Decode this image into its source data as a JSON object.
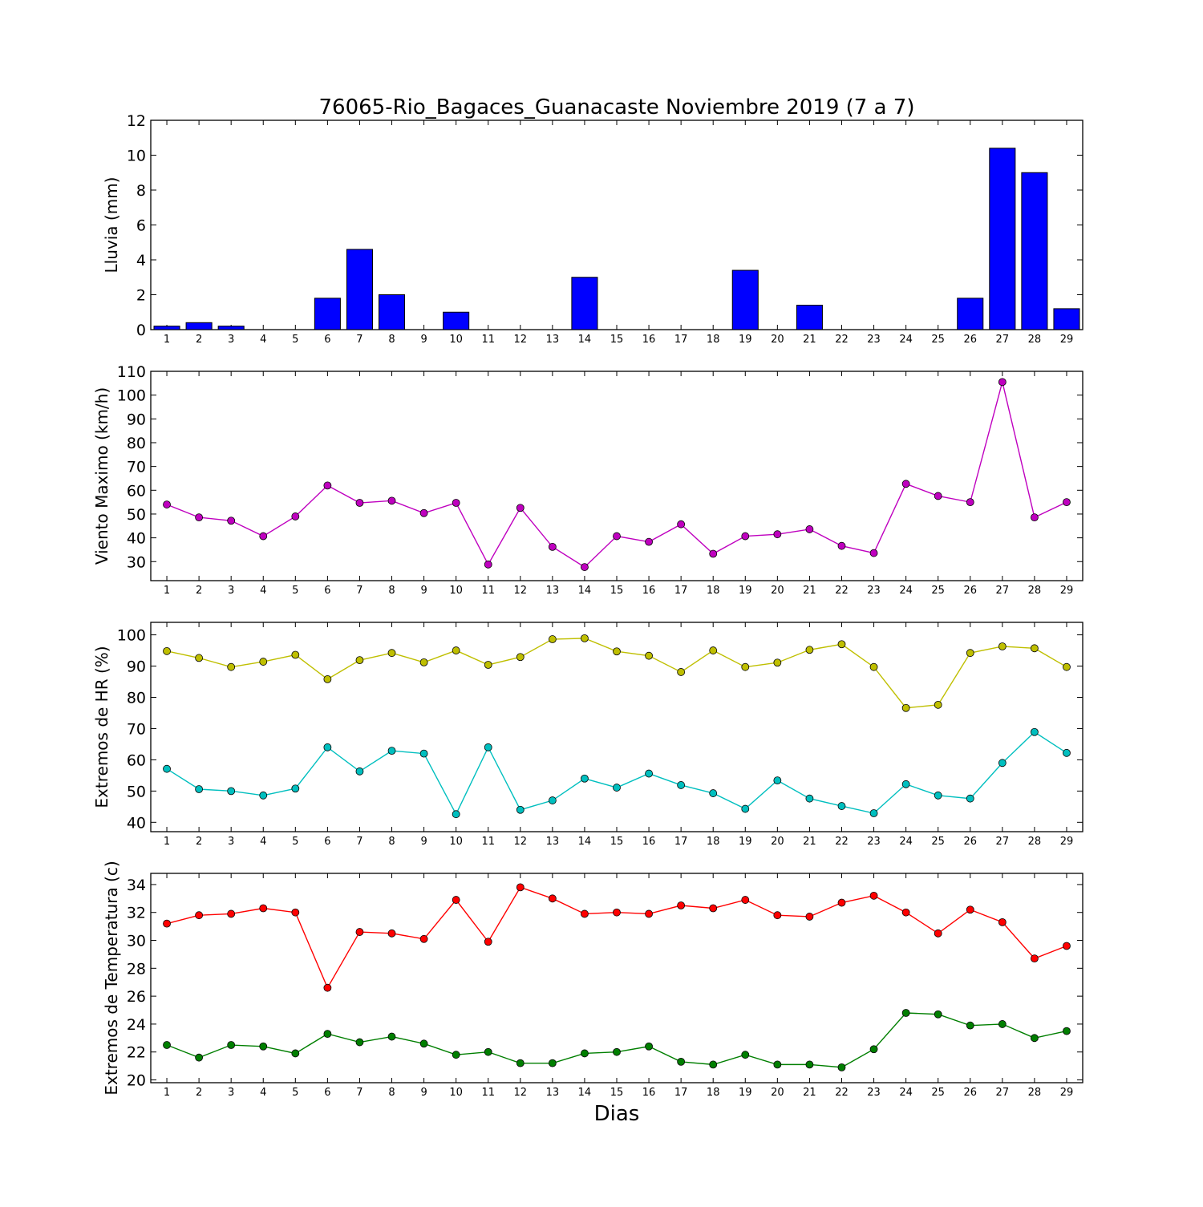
{
  "title": "76065-Rio_Bagaces_Guanacaste Noviembre 2019  (7 a 7)",
  "xlabel": "Dias",
  "chart_data": [
    {
      "type": "bar",
      "ylabel": "Lluvia (mm)",
      "ylim": [
        0,
        12
      ],
      "yticks": [
        0,
        2,
        4,
        6,
        8,
        10,
        12
      ],
      "x": [
        1,
        2,
        3,
        4,
        5,
        6,
        7,
        8,
        9,
        10,
        11,
        12,
        13,
        14,
        15,
        16,
        17,
        18,
        19,
        20,
        21,
        22,
        23,
        24,
        25,
        26,
        27,
        28,
        29
      ],
      "series": [
        {
          "color": "#0000ff",
          "values": [
            0.2,
            0.4,
            0.2,
            0,
            0,
            1.8,
            4.6,
            2.0,
            0,
            1.0,
            0,
            0,
            0,
            3.0,
            0,
            0,
            0,
            0,
            3.4,
            0,
            1.4,
            0,
            0,
            0,
            0,
            1.8,
            10.4,
            9.0,
            1.2
          ]
        }
      ]
    },
    {
      "type": "line",
      "ylabel": "Viento Maximo (km/h)",
      "ylim": [
        22,
        110
      ],
      "yticks": [
        30,
        40,
        50,
        60,
        70,
        80,
        90,
        100,
        110
      ],
      "x": [
        1,
        2,
        3,
        4,
        5,
        6,
        7,
        8,
        9,
        10,
        11,
        12,
        13,
        14,
        15,
        16,
        17,
        18,
        19,
        20,
        21,
        22,
        23,
        24,
        25,
        26,
        27,
        28,
        29
      ],
      "series": [
        {
          "color": "#bf00bf",
          "values": [
            54,
            48.6,
            47.2,
            40.7,
            49,
            62,
            54.7,
            55.6,
            50.4,
            54.7,
            28.8,
            52.6,
            36.2,
            27.7,
            40.7,
            38.3,
            45.7,
            33.3,
            40.7,
            41.5,
            43.6,
            36.6,
            33.6,
            62.7,
            57.6,
            55,
            105.5,
            48.6,
            55
          ]
        }
      ]
    },
    {
      "type": "line",
      "ylabel": "Extremos de HR (%)",
      "ylim": [
        37,
        104
      ],
      "yticks": [
        40,
        50,
        60,
        70,
        80,
        90,
        100
      ],
      "x": [
        1,
        2,
        3,
        4,
        5,
        6,
        7,
        8,
        9,
        10,
        11,
        12,
        13,
        14,
        15,
        16,
        17,
        18,
        19,
        20,
        21,
        22,
        23,
        24,
        25,
        26,
        27,
        28,
        29
      ],
      "series": [
        {
          "color": "#bfbf00",
          "values": [
            94.8,
            92.6,
            89.7,
            91.4,
            93.6,
            85.8,
            91.9,
            94.2,
            91.2,
            95.0,
            90.4,
            92.9,
            98.6,
            98.9,
            94.7,
            93.3,
            88.1,
            95.0,
            89.7,
            91.1,
            95.2,
            97.0,
            89.7,
            76.6,
            77.6,
            94.2,
            96.3,
            95.7,
            89.7
          ]
        },
        {
          "color": "#00bfbf",
          "values": [
            57.1,
            50.6,
            50.0,
            48.6,
            50.8,
            64.0,
            56.3,
            62.9,
            62.0,
            42.6,
            64.0,
            44.0,
            47.0,
            54.0,
            51.1,
            55.6,
            51.9,
            49.3,
            44.3,
            53.4,
            47.6,
            45.2,
            42.9,
            52.2,
            48.6,
            47.6,
            59.0,
            68.9,
            62.2
          ]
        }
      ]
    },
    {
      "type": "line",
      "ylabel": "Extremos de Temperatura (c)",
      "ylim": [
        19.8,
        34.8
      ],
      "yticks": [
        20,
        22,
        24,
        26,
        28,
        30,
        32,
        34
      ],
      "x": [
        1,
        2,
        3,
        4,
        5,
        6,
        7,
        8,
        9,
        10,
        11,
        12,
        13,
        14,
        15,
        16,
        17,
        18,
        19,
        20,
        21,
        22,
        23,
        24,
        25,
        26,
        27,
        28,
        29
      ],
      "series": [
        {
          "color": "#ff0000",
          "values": [
            31.2,
            31.8,
            31.9,
            32.3,
            32.0,
            26.6,
            30.6,
            30.5,
            30.1,
            32.9,
            29.9,
            33.8,
            33.0,
            31.9,
            32.0,
            31.9,
            32.5,
            32.3,
            32.9,
            31.8,
            31.7,
            32.7,
            33.2,
            32.0,
            30.5,
            32.2,
            31.3,
            28.7,
            29.6
          ]
        },
        {
          "color": "#007f00",
          "values": [
            22.5,
            21.6,
            22.5,
            22.4,
            21.9,
            23.3,
            22.7,
            23.1,
            22.6,
            21.8,
            22.0,
            21.2,
            21.2,
            21.9,
            22.0,
            22.4,
            21.3,
            21.1,
            21.8,
            21.1,
            21.1,
            20.9,
            22.2,
            24.8,
            24.7,
            23.9,
            24.0,
            23.0,
            23.5
          ]
        }
      ]
    }
  ]
}
